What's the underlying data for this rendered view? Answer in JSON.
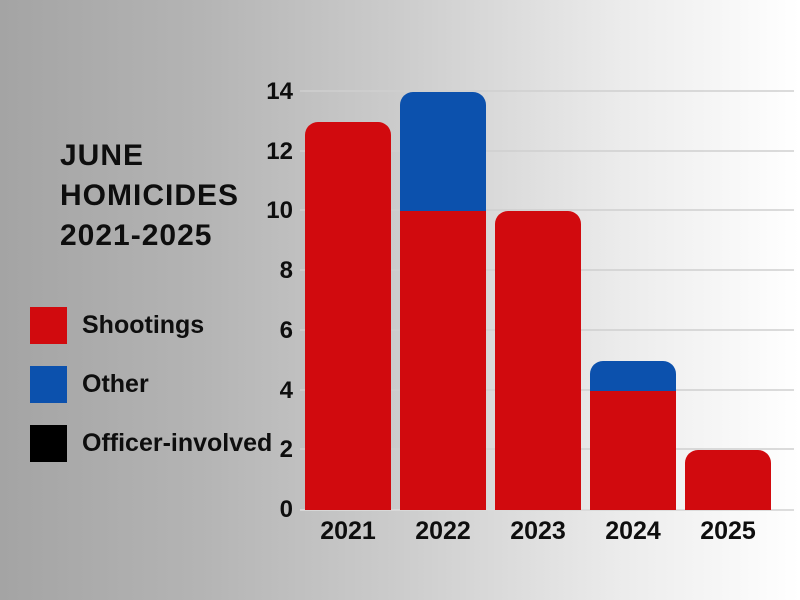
{
  "title": {
    "lines": [
      "JUNE",
      "HOMICIDES",
      "2021-2025"
    ]
  },
  "legend": {
    "items": [
      {
        "label": "Shootings",
        "color": "#d10a0e"
      },
      {
        "label": "Other",
        "color": "#0c51ad"
      },
      {
        "label": "Officer-involved",
        "color": "#000000"
      }
    ]
  },
  "colors": {
    "background_left": "#a4a4a4",
    "background_right": "#ffffff",
    "gridline": "#cfcfcf",
    "text": "#0e0e0e"
  },
  "chart_data": {
    "type": "bar",
    "stacked": true,
    "title": "JUNE HOMICIDES 2021-2025",
    "categories": [
      "2021",
      "2022",
      "2023",
      "2024",
      "2025"
    ],
    "series": [
      {
        "name": "Shootings",
        "color": "#d10a0e",
        "values": [
          13,
          10,
          10,
          4,
          2
        ]
      },
      {
        "name": "Other",
        "color": "#0c51ad",
        "values": [
          0,
          4,
          0,
          1,
          0
        ]
      },
      {
        "name": "Officer-involved",
        "color": "#000000",
        "values": [
          0,
          0,
          0,
          0,
          0
        ]
      }
    ],
    "totals": [
      13,
      14,
      10,
      5,
      2
    ],
    "xlabel": "",
    "ylabel": "",
    "ylim": [
      0,
      14
    ],
    "yticks": [
      0,
      2,
      4,
      6,
      8,
      10,
      12,
      14
    ],
    "grid": true,
    "legend_position": "left"
  }
}
